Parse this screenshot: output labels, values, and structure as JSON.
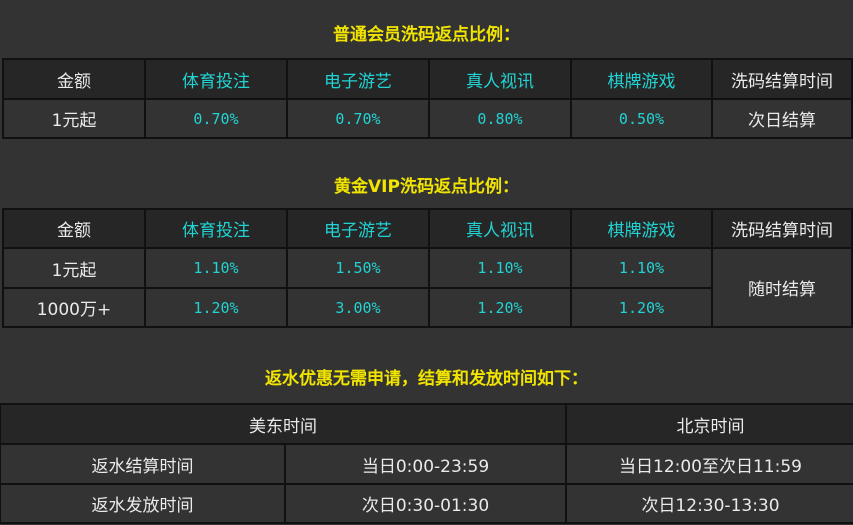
{
  "normal": {
    "title": "普通会员洗码返点比例：",
    "headers": [
      "金额",
      "体育投注",
      "电子游艺",
      "真人视讯",
      "棋牌游戏",
      "洗码结算时间"
    ],
    "row": [
      "1元起",
      "0.70%",
      "0.70%",
      "0.80%",
      "0.50%",
      "次日结算"
    ]
  },
  "vip": {
    "title": "黄金VIP洗码返点比例：",
    "headers": [
      "金额",
      "体育投注",
      "电子游艺",
      "真人视讯",
      "棋牌游戏",
      "洗码结算时间"
    ],
    "rows": [
      [
        "1元起",
        "1.10%",
        "1.50%",
        "1.10%",
        "1.10%"
      ],
      [
        "1000万+",
        "1.20%",
        "3.00%",
        "1.20%",
        "1.20%"
      ]
    ],
    "settle": "随时结算"
  },
  "rebate": {
    "title": "返水优惠无需申请，结算和发放时间如下：",
    "headers": [
      "美东时间",
      "北京时间"
    ],
    "rows": [
      [
        "返水结算时间",
        "当日0:00-23:59",
        "当日12:00至次日11:59"
      ],
      [
        "返水发放时间",
        "次日0:30-01:30",
        "次日12:30-13:30"
      ]
    ]
  },
  "colors": {
    "title": "#f0e400",
    "accent": "#22d3d3",
    "background": "#333333",
    "header": "#262626"
  }
}
